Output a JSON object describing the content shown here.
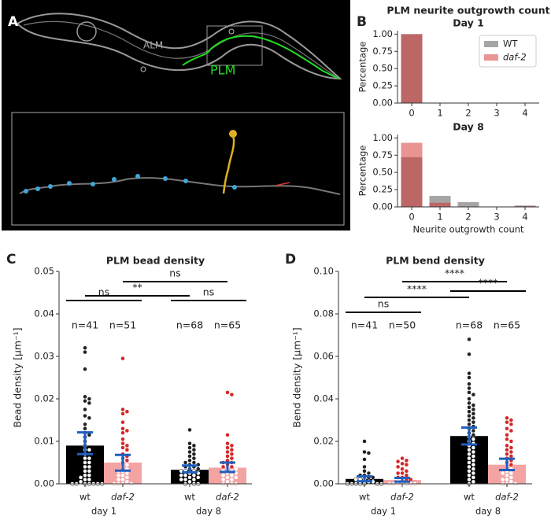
{
  "figure": {
    "panel_labels": [
      "A",
      "B",
      "C",
      "D"
    ],
    "panel_a": {
      "labels": [
        "ALM",
        "PLM"
      ]
    }
  },
  "chart_data": [
    {
      "type": "overlap-bar",
      "suptitle": "PLM neurite outgrowth count",
      "title": "Day 1",
      "ylabel": "Percentage",
      "categories": [
        "0",
        "1",
        "2",
        "3",
        "4"
      ],
      "series": [
        {
          "name": "WT",
          "color": "#7f7f7f",
          "values": [
            1,
            0,
            0,
            0,
            0
          ]
        },
        {
          "name": "daf-2",
          "color": "#d62728",
          "values": [
            1,
            0,
            0,
            0,
            0
          ]
        }
      ],
      "ylim": [
        0,
        1.05
      ],
      "yticks": [
        {
          "value": 0,
          "label": "0.00"
        },
        {
          "value": 0.25,
          "label": "0.25"
        },
        {
          "value": 0.5,
          "label": "0.50"
        },
        {
          "value": 0.75,
          "label": "0.75"
        },
        {
          "value": 1,
          "label": "1.00"
        }
      ],
      "legend": "upper right"
    },
    {
      "type": "overlap-bar",
      "title": "Day 8",
      "ylabel": "Percentage",
      "xlabel": "Neurite outgrowth count",
      "categories": [
        "0",
        "1",
        "2",
        "3",
        "4"
      ],
      "series": [
        {
          "name": "WT",
          "color": "#7f7f7f",
          "values": [
            0.72,
            0.16,
            0.07,
            0,
            0.02
          ]
        },
        {
          "name": "daf-2",
          "color": "#d62728",
          "values": [
            0.93,
            0.06,
            0,
            0,
            0.01
          ]
        }
      ],
      "ylim": [
        0,
        1.05
      ],
      "yticks": [
        {
          "value": 0,
          "label": "0.00"
        },
        {
          "value": 0.25,
          "label": "0.25"
        },
        {
          "value": 0.5,
          "label": "0.50"
        },
        {
          "value": 0.75,
          "label": "0.75"
        },
        {
          "value": 1,
          "label": "1.00"
        }
      ]
    },
    {
      "type": "swarm-bar",
      "title": "PLM bead density",
      "ylabel": "Bead density [μm⁻¹]",
      "groups": [
        "day 1",
        "day 8"
      ],
      "categories": [
        "wt",
        "daf-2",
        "wt",
        "daf-2"
      ],
      "values": [
        0.009,
        0.005,
        0.0033,
        0.0038
      ],
      "ci_low": [
        0.007,
        0.0031,
        0.0027,
        0.0028
      ],
      "ci_high": [
        0.0121,
        0.0068,
        0.0043,
        0.005
      ],
      "bar_colors": [
        "#000000",
        "#f4a3a3",
        "#000000",
        "#f4a3a3"
      ],
      "point_colors": [
        "#222222",
        "#d62728",
        "#222222",
        "#d62728"
      ],
      "errorbar_color": "#1f5fbf",
      "points": [
        [
          0.032,
          0.031,
          0.027,
          0.0205,
          0.02,
          0.0195,
          0.019,
          0.0175,
          0.016,
          0.0155,
          0.014,
          0.013,
          0.012,
          0.0115,
          0.011,
          0.01,
          0.009,
          0.008,
          0.008,
          0.007,
          0.006,
          0.006,
          0.005,
          0.005,
          0.004,
          0.004,
          0.003,
          0.003,
          0.002,
          0.002,
          0.0015,
          0.001,
          0.001,
          0.0005,
          0,
          0,
          0,
          0,
          0,
          0,
          0
        ],
        [
          0.0295,
          0.0175,
          0.017,
          0.0165,
          0.0145,
          0.013,
          0.0125,
          0.012,
          0.0105,
          0.0095,
          0.009,
          0.0085,
          0.008,
          0.007,
          0.0065,
          0.006,
          0.0055,
          0.005,
          0.0045,
          0.004,
          0.0035,
          0.003,
          0.003,
          0.0025,
          0.002,
          0.002,
          0.0015,
          0.001,
          0.001,
          0.0005,
          0,
          0,
          0,
          0
        ],
        [
          0.0127,
          0.0095,
          0.009,
          0.0085,
          0.008,
          0.0075,
          0.007,
          0.0065,
          0.006,
          0.0055,
          0.005,
          0.005,
          0.0045,
          0.0045,
          0.004,
          0.004,
          0.0035,
          0.0035,
          0.003,
          0.003,
          0.003,
          0.0025,
          0.0025,
          0.002,
          0.002,
          0.002,
          0.0015,
          0.0015,
          0.001,
          0.001,
          0.001,
          0.0005,
          0,
          0,
          0
        ],
        [
          0.0215,
          0.021,
          0.0115,
          0.0095,
          0.009,
          0.0085,
          0.008,
          0.0075,
          0.007,
          0.0065,
          0.006,
          0.0055,
          0.005,
          0.005,
          0.0045,
          0.004,
          0.004,
          0.0035,
          0.0035,
          0.003,
          0.003,
          0.0025,
          0.0025,
          0.002,
          0.002,
          0.0015,
          0.0015,
          0.001,
          0.001,
          0.0005,
          0,
          0,
          0
        ]
      ],
      "n_labels": [
        "n=41",
        "n=51",
        "n=68",
        "n=65"
      ],
      "comparisons": [
        {
          "pair": [
            0,
            1
          ],
          "label": "ns"
        },
        {
          "pair": [
            2,
            3
          ],
          "label": "ns"
        },
        {
          "pair": [
            0,
            2
          ],
          "label": "**"
        },
        {
          "pair": [
            1,
            3
          ],
          "label": "ns"
        }
      ],
      "ylim": [
        0,
        0.05
      ],
      "yticks": [
        {
          "value": 0,
          "label": "0.00"
        },
        {
          "value": 0.01,
          "label": "0.01"
        },
        {
          "value": 0.02,
          "label": "0.02"
        },
        {
          "value": 0.03,
          "label": "0.03"
        },
        {
          "value": 0.04,
          "label": "0.04"
        },
        {
          "value": 0.05,
          "label": "0.05"
        }
      ]
    },
    {
      "type": "swarm-bar",
      "title": "PLM bend density",
      "ylabel": "Bend density [μm⁻¹]",
      "groups": [
        "day 1",
        "day 8"
      ],
      "categories": [
        "wt",
        "daf-2",
        "wt",
        "daf-2"
      ],
      "values": [
        0.0023,
        0.0018,
        0.0225,
        0.009
      ],
      "ci_low": [
        0.0012,
        0.001,
        0.0185,
        0.0065
      ],
      "ci_high": [
        0.0035,
        0.0028,
        0.0265,
        0.0118
      ],
      "bar_colors": [
        "#000000",
        "#f4a3a3",
        "#000000",
        "#f4a3a3"
      ],
      "point_colors": [
        "#222222",
        "#d62728",
        "#222222",
        "#d62728"
      ],
      "errorbar_color": "#1f5fbf",
      "points": [
        [
          0.02,
          0.015,
          0.0145,
          0.0115,
          0.008,
          0.006,
          0.005,
          0.004,
          0.004,
          0.003,
          0.003,
          0.002,
          0.002,
          0.002,
          0.001,
          0.001,
          0,
          0,
          0,
          0,
          0,
          0,
          0
        ],
        [
          0.012,
          0.011,
          0.0105,
          0.0095,
          0.009,
          0.008,
          0.007,
          0.006,
          0.005,
          0.005,
          0.004,
          0.003,
          0.003,
          0.002,
          0.002,
          0.001,
          0.001,
          0,
          0,
          0,
          0,
          0
        ],
        [
          0.068,
          0.061,
          0.052,
          0.05,
          0.047,
          0.045,
          0.043,
          0.042,
          0.04,
          0.038,
          0.037,
          0.036,
          0.035,
          0.034,
          0.033,
          0.032,
          0.031,
          0.03,
          0.029,
          0.028,
          0.027,
          0.026,
          0.025,
          0.024,
          0.023,
          0.022,
          0.021,
          0.02,
          0.019,
          0.018,
          0.017,
          0.016,
          0.015,
          0.014,
          0.013,
          0.012,
          0.011,
          0.01,
          0.009,
          0.008,
          0.007,
          0.006,
          0.005,
          0.004,
          0.003,
          0.002,
          0.001,
          0
        ],
        [
          0.031,
          0.03,
          0.029,
          0.028,
          0.026,
          0.025,
          0.023,
          0.021,
          0.02,
          0.018,
          0.017,
          0.016,
          0.015,
          0.014,
          0.013,
          0.012,
          0.011,
          0.01,
          0.009,
          0.008,
          0.007,
          0.006,
          0.005,
          0.005,
          0.004,
          0.003,
          0.002,
          0.002,
          0.001,
          0,
          0,
          0
        ]
      ],
      "n_labels": [
        "n=41",
        "n=50",
        "n=68",
        "n=65"
      ],
      "comparisons": [
        {
          "pair": [
            0,
            1
          ],
          "label": "ns"
        },
        {
          "pair": [
            2,
            3
          ],
          "label": "****"
        },
        {
          "pair": [
            0,
            2
          ],
          "label": "****"
        },
        {
          "pair": [
            1,
            3
          ],
          "label": "****"
        }
      ],
      "ylim": [
        0,
        0.1
      ],
      "yticks": [
        {
          "value": 0,
          "label": "0.00"
        },
        {
          "value": 0.02,
          "label": "0.02"
        },
        {
          "value": 0.04,
          "label": "0.04"
        },
        {
          "value": 0.06,
          "label": "0.06"
        },
        {
          "value": 0.08,
          "label": "0.08"
        },
        {
          "value": 0.1,
          "label": "0.10"
        }
      ]
    }
  ]
}
